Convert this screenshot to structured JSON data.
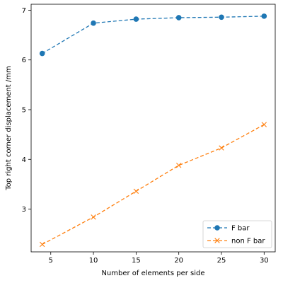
{
  "chart_data": {
    "type": "line",
    "title": "",
    "xlabel": "Number of elements per side",
    "ylabel": "Top right corner displacement /mm",
    "xlim": [
      2.7,
      31.3
    ],
    "ylim": [
      2.14,
      7.12
    ],
    "xticks": [
      5,
      10,
      15,
      20,
      25,
      30
    ],
    "yticks": [
      3,
      4,
      5,
      6,
      7
    ],
    "grid": false,
    "legend": "bottom-right",
    "x": [
      4,
      10,
      15,
      20,
      25,
      30
    ],
    "series": [
      {
        "name": "F bar",
        "values": [
          6.13,
          6.74,
          6.82,
          6.85,
          6.86,
          6.88
        ],
        "color": "#1f77b4",
        "marker": "circle",
        "linestyle": "dashed"
      },
      {
        "name": "non F bar",
        "values": [
          2.29,
          2.84,
          3.36,
          3.88,
          4.23,
          4.7
        ],
        "color": "#ff7f0e",
        "marker": "x",
        "linestyle": "dashed"
      }
    ]
  }
}
